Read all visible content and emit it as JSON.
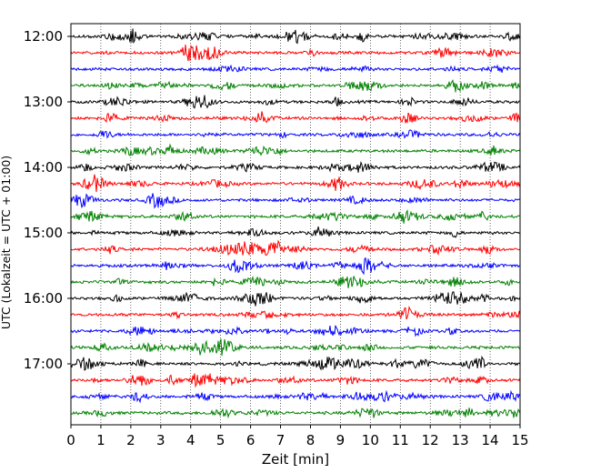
{
  "chart_data": {
    "type": "line",
    "title": "",
    "xlabel": "Zeit  [min]",
    "ylabel": "UTC (Lokalzeit = UTC + 01:00)",
    "xlim": [
      0,
      15
    ],
    "x_ticks": [
      0,
      1,
      2,
      3,
      4,
      5,
      6,
      7,
      8,
      9,
      10,
      11,
      12,
      13,
      14,
      15
    ],
    "y_tick_labels": [
      "12:00",
      "13:00",
      "14:00",
      "15:00",
      "16:00",
      "17:00"
    ],
    "trace_start_times": [
      "12:00",
      "12:15",
      "12:30",
      "12:45",
      "13:00",
      "13:15",
      "13:30",
      "13:45",
      "14:00",
      "14:15",
      "14:30",
      "14:45",
      "15:00",
      "15:15",
      "15:30",
      "15:45",
      "16:00",
      "16:15",
      "16:30",
      "16:45",
      "17:00",
      "17:15",
      "17:30",
      "17:45"
    ],
    "trace_minutes": 15,
    "trace_colors": [
      "#000000",
      "#ff0000",
      "#0000ff",
      "#008000"
    ],
    "grid": "vertical dotted at each minute",
    "legend": "none"
  }
}
